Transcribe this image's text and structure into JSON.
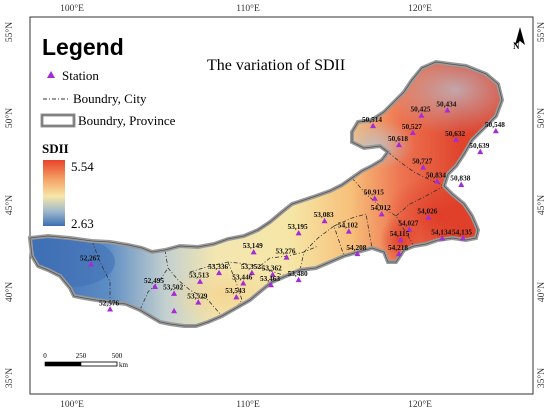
{
  "map": {
    "title": "The variation of SDII",
    "graticule": {
      "lon_labels": [
        "100°E",
        "110°E",
        "120°E"
      ],
      "lat_labels": [
        "55°N",
        "50°N",
        "45°N",
        "40°N",
        "35°N"
      ]
    },
    "legend": {
      "title": "Legend",
      "station_label": "Station",
      "city_boundary_label": "Boundry, City",
      "province_boundary_label": "Boundry, Province"
    },
    "sdii": {
      "title": "SDII",
      "max_label": "5.54",
      "min_label": "2.63",
      "max_value": 5.54,
      "min_value": 2.63,
      "color_high": "#e8422c",
      "color_mid": "#f7e6a8",
      "color_low": "#3d6fb5"
    },
    "scale_bar": {
      "tick_0": "0",
      "tick_250": "250",
      "tick_500": "500",
      "unit": "km"
    },
    "north_label": "N",
    "station_color": "#a52bd6",
    "stations": [
      {
        "id": "50434",
        "label": "50,434",
        "lon": 121.7,
        "lat": 50.5
      },
      {
        "id": "50425",
        "label": "50,425",
        "lon": 120.2,
        "lat": 50.2
      },
      {
        "id": "50527",
        "label": "50,527",
        "lon": 119.7,
        "lat": 49.2
      },
      {
        "id": "50514",
        "label": "50,514",
        "lon": 117.4,
        "lat": 49.6
      },
      {
        "id": "50548",
        "label": "50,548",
        "lon": 124.5,
        "lat": 49.3
      },
      {
        "id": "50632",
        "label": "50,632",
        "lon": 122.2,
        "lat": 48.8
      },
      {
        "id": "50618",
        "label": "50,618",
        "lon": 118.9,
        "lat": 48.5
      },
      {
        "id": "50639",
        "label": "50,639",
        "lon": 123.6,
        "lat": 48.1
      },
      {
        "id": "50727",
        "label": "50,727",
        "lon": 120.3,
        "lat": 47.2
      },
      {
        "id": "50834",
        "label": "50,834",
        "lon": 121.1,
        "lat": 46.4
      },
      {
        "id": "50838",
        "label": "50,838",
        "lon": 122.5,
        "lat": 46.2
      },
      {
        "id": "50915",
        "label": "50,915",
        "lon": 117.5,
        "lat": 45.4
      },
      {
        "id": "53083",
        "label": "53,083",
        "lon": 114.6,
        "lat": 44.1
      },
      {
        "id": "54012",
        "label": "54,012",
        "lon": 117.9,
        "lat": 44.5
      },
      {
        "id": "54026",
        "label": "54,026",
        "lon": 120.6,
        "lat": 44.3
      },
      {
        "id": "53195",
        "label": "53,195",
        "lon": 113.1,
        "lat": 43.4
      },
      {
        "id": "54102",
        "label": "54,102",
        "lon": 116.0,
        "lat": 43.5
      },
      {
        "id": "54027",
        "label": "54,027",
        "lon": 119.5,
        "lat": 43.6
      },
      {
        "id": "54115",
        "label": "54,115",
        "lon": 119.0,
        "lat": 43.0
      },
      {
        "id": "54134",
        "label": "54,134",
        "lon": 121.4,
        "lat": 43.1
      },
      {
        "id": "54135",
        "label": "54,135",
        "lon": 122.6,
        "lat": 43.1
      },
      {
        "id": "52267",
        "label": "52,267",
        "lon": 101.1,
        "lat": 41.6
      },
      {
        "id": "53149",
        "label": "53,149",
        "lon": 110.5,
        "lat": 42.3
      },
      {
        "id": "53276",
        "label": "53,276",
        "lon": 112.4,
        "lat": 42.0
      },
      {
        "id": "54208",
        "label": "54,208",
        "lon": 116.5,
        "lat": 42.2
      },
      {
        "id": "54218",
        "label": "54,218",
        "lon": 118.9,
        "lat": 42.2
      },
      {
        "id": "53336",
        "label": "53,336",
        "lon": 108.5,
        "lat": 41.1
      },
      {
        "id": "53352",
        "label": "53,352",
        "lon": 110.4,
        "lat": 41.1
      },
      {
        "id": "53362",
        "label": "53,362",
        "lon": 111.6,
        "lat": 41.0
      },
      {
        "id": "53480",
        "label": "53,480",
        "lon": 113.1,
        "lat": 40.7
      },
      {
        "id": "53446",
        "label": "53,446",
        "lon": 109.9,
        "lat": 40.5
      },
      {
        "id": "53463",
        "label": "53,463",
        "lon": 111.5,
        "lat": 40.4
      },
      {
        "id": "53513",
        "label": "53,513",
        "lon": 107.4,
        "lat": 40.6
      },
      {
        "id": "52495",
        "label": "52,495",
        "lon": 104.8,
        "lat": 40.3
      },
      {
        "id": "53502",
        "label": "53,502",
        "lon": 105.9,
        "lat": 39.9
      },
      {
        "id": "53543",
        "label": "53,543",
        "lon": 109.5,
        "lat": 39.7
      },
      {
        "id": "53529",
        "label": "53,529",
        "lon": 107.3,
        "lat": 39.4
      },
      {
        "id": "52576",
        "label": "52,576",
        "lon": 102.2,
        "lat": 39.0
      },
      {
        "id": "53602",
        "label": "",
        "lon": 105.9,
        "lat": 38.9
      }
    ]
  }
}
